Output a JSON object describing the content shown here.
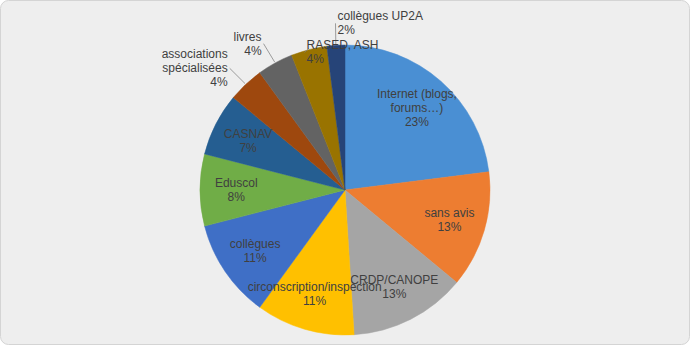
{
  "chart_data": {
    "type": "pie",
    "categories": [
      "Internet (blogs, forums…)",
      "sans avis",
      "CRDP/CANOPE",
      "circonscription/inspection",
      "collègues",
      "Eduscol",
      "CASNAV",
      "associations spécialisées",
      "livres",
      "RASED, ASH",
      "collègues UP2A"
    ],
    "values": [
      23,
      13,
      13,
      11,
      11,
      8,
      7,
      4,
      4,
      4,
      2
    ],
    "value_labels": [
      "23%",
      "13%",
      "13%",
      "11%",
      "11%",
      "8%",
      "7%",
      "4%",
      "4%",
      "4%",
      "2%"
    ],
    "colors": [
      "#4a8fd3",
      "#ed7d31",
      "#a5a5a5",
      "#ffc000",
      "#3f6fc6",
      "#70ad47",
      "#255e91",
      "#9e480e",
      "#636363",
      "#997300",
      "#264478"
    ],
    "data_labels": true
  }
}
